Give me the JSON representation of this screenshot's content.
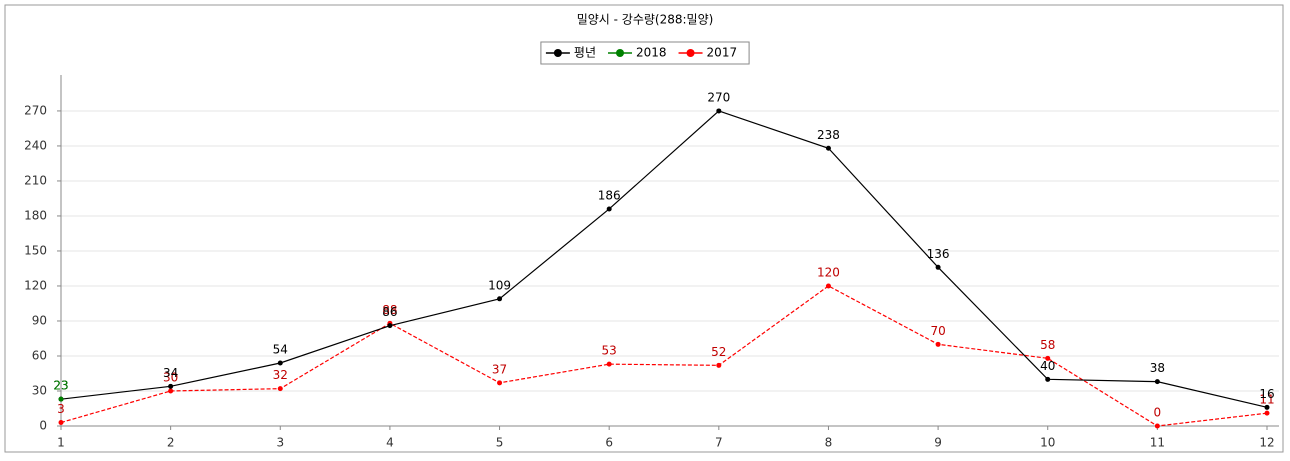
{
  "chart_data": {
    "type": "line",
    "title": "밀양시 - 강수량(288:밀양)",
    "x": [
      1,
      2,
      3,
      4,
      5,
      6,
      7,
      8,
      9,
      10,
      11,
      12
    ],
    "xlim": [
      1,
      12
    ],
    "xticks": [
      1,
      2,
      3,
      4,
      5,
      6,
      7,
      8,
      9,
      10,
      11,
      12
    ],
    "ylim": [
      0,
      290
    ],
    "yticks": [
      0,
      30,
      60,
      90,
      120,
      150,
      180,
      210,
      240,
      270
    ],
    "grid": true,
    "legend": "top",
    "series": [
      {
        "name": "평년",
        "color": "#000000",
        "values": [
          23,
          34,
          54,
          86,
          109,
          186,
          270,
          238,
          136,
          40,
          38,
          16
        ]
      },
      {
        "name": "2018",
        "color": "#008000",
        "values": [
          23,
          null,
          null,
          null,
          null,
          null,
          null,
          null,
          null,
          null,
          null,
          null
        ]
      },
      {
        "name": "2017",
        "color": "#ff0000",
        "values": [
          3,
          30,
          32,
          88,
          37,
          53,
          52,
          120,
          70,
          58,
          0,
          11
        ]
      }
    ]
  }
}
